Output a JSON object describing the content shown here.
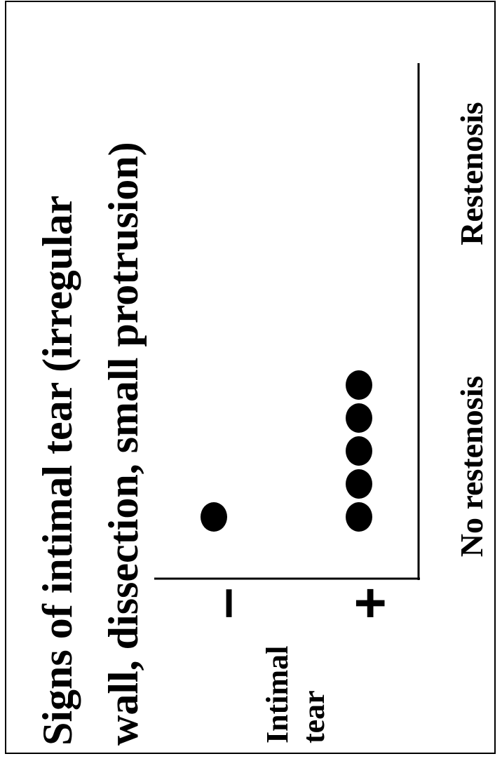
{
  "chart_data": {
    "type": "dot",
    "title": [
      "Signs of intimal tear (irregular",
      "wall, dissection, small protrusion)"
    ],
    "categories": [
      "No restenosis",
      "Restenosis"
    ],
    "ylabel": [
      "Intimal",
      "tear"
    ],
    "series": [
      {
        "name": "–",
        "color": "#000000",
        "values": [
          1,
          0
        ]
      },
      {
        "name": "+",
        "color": "#000000",
        "values": [
          5,
          0
        ]
      }
    ]
  }
}
